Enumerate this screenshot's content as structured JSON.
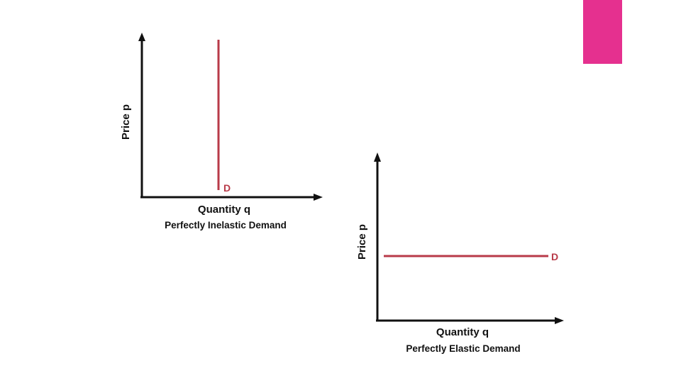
{
  "colors": {
    "accent": "#e5308f",
    "demand_line": "#b83a48",
    "axis": "#111111"
  },
  "graphs": [
    {
      "y_axis_label": "Price p",
      "x_axis_label": "Quantity q",
      "curve_label": "D",
      "caption": "Perfectly Inelastic Demand"
    },
    {
      "y_axis_label": "Price p",
      "x_axis_label": "Quantity q",
      "curve_label": "D",
      "caption": "Perfectly Elastic Demand"
    }
  ]
}
